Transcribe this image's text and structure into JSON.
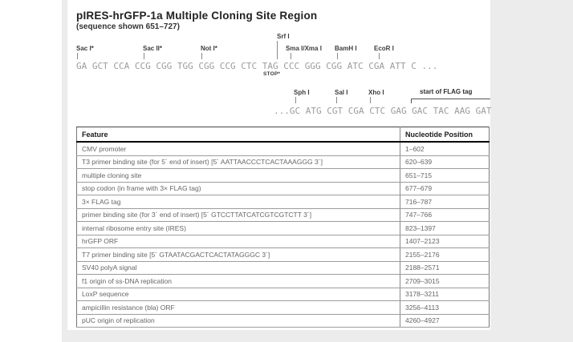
{
  "page": {
    "title": "pIRES-hrGFP-1a Multiple Cloning Site Region",
    "subtitle": "(sequence shown 651–727)"
  },
  "diagram": {
    "row1": {
      "sequence": "GA GCT CCA CCG CGG TGG CGG CCG CTC TAG CCC GGG CGG ATC CGA ATT C ...",
      "stop_label": "STOP*",
      "sites": [
        {
          "label": "Sac I*"
        },
        {
          "label": "Sac II*"
        },
        {
          "label": "Not I*"
        },
        {
          "label": "Srf I"
        },
        {
          "label": "Sma I/Xma I"
        },
        {
          "label": "BamH I"
        },
        {
          "label": "EcoR I"
        }
      ]
    },
    "row2": {
      "sequence": "...GC ATG CGT CGA CTC GAG GAC TAC AAG GAT",
      "sites": [
        {
          "label": "Sph I"
        },
        {
          "label": "Sal I"
        },
        {
          "label": "Xho I"
        }
      ],
      "flag_tag_label": "start of FLAG tag"
    }
  },
  "table": {
    "headers": {
      "feature": "Feature",
      "position": "Nucleotide Position"
    },
    "rows": [
      {
        "feature": "CMV promoter",
        "position": "1–602"
      },
      {
        "feature": "T3 primer binding site (for 5´ end of insert) [5´ AATTAACCCTCACTAAAGGG 3´]",
        "position": "620–639"
      },
      {
        "feature": "multiple cloning site",
        "position": "651–715"
      },
      {
        "feature": "stop codon (in frame with 3× FLAG tag)",
        "position": "677–679"
      },
      {
        "feature": "3× FLAG tag",
        "position": "716–787"
      },
      {
        "feature": "primer binding site (for 3´ end of insert) [5´ GTCCTTATCATCGTCGTCTT 3´]",
        "position": "747–766"
      },
      {
        "feature": "internal ribosome entry site (IRES)",
        "position": "823–1397"
      },
      {
        "feature": "hrGFP ORF",
        "position": "1407–2123"
      },
      {
        "feature": "T7 primer binding site [5´ GTAATACGACTCACTATAGGGC 3´]",
        "position": "2155–2176"
      },
      {
        "feature": "SV40 polyA signal",
        "position": "2188–2571"
      },
      {
        "feature": "f1 origin of ss-DNA replication",
        "position": "2709–3015"
      },
      {
        "feature": "LoxP sequence",
        "position": "3178–3211"
      },
      {
        "feature": "ampicillin resistance (bla) ORF",
        "position": "3256–4113"
      },
      {
        "feature": "pUC origin of replication",
        "position": "4260–4927"
      }
    ]
  }
}
